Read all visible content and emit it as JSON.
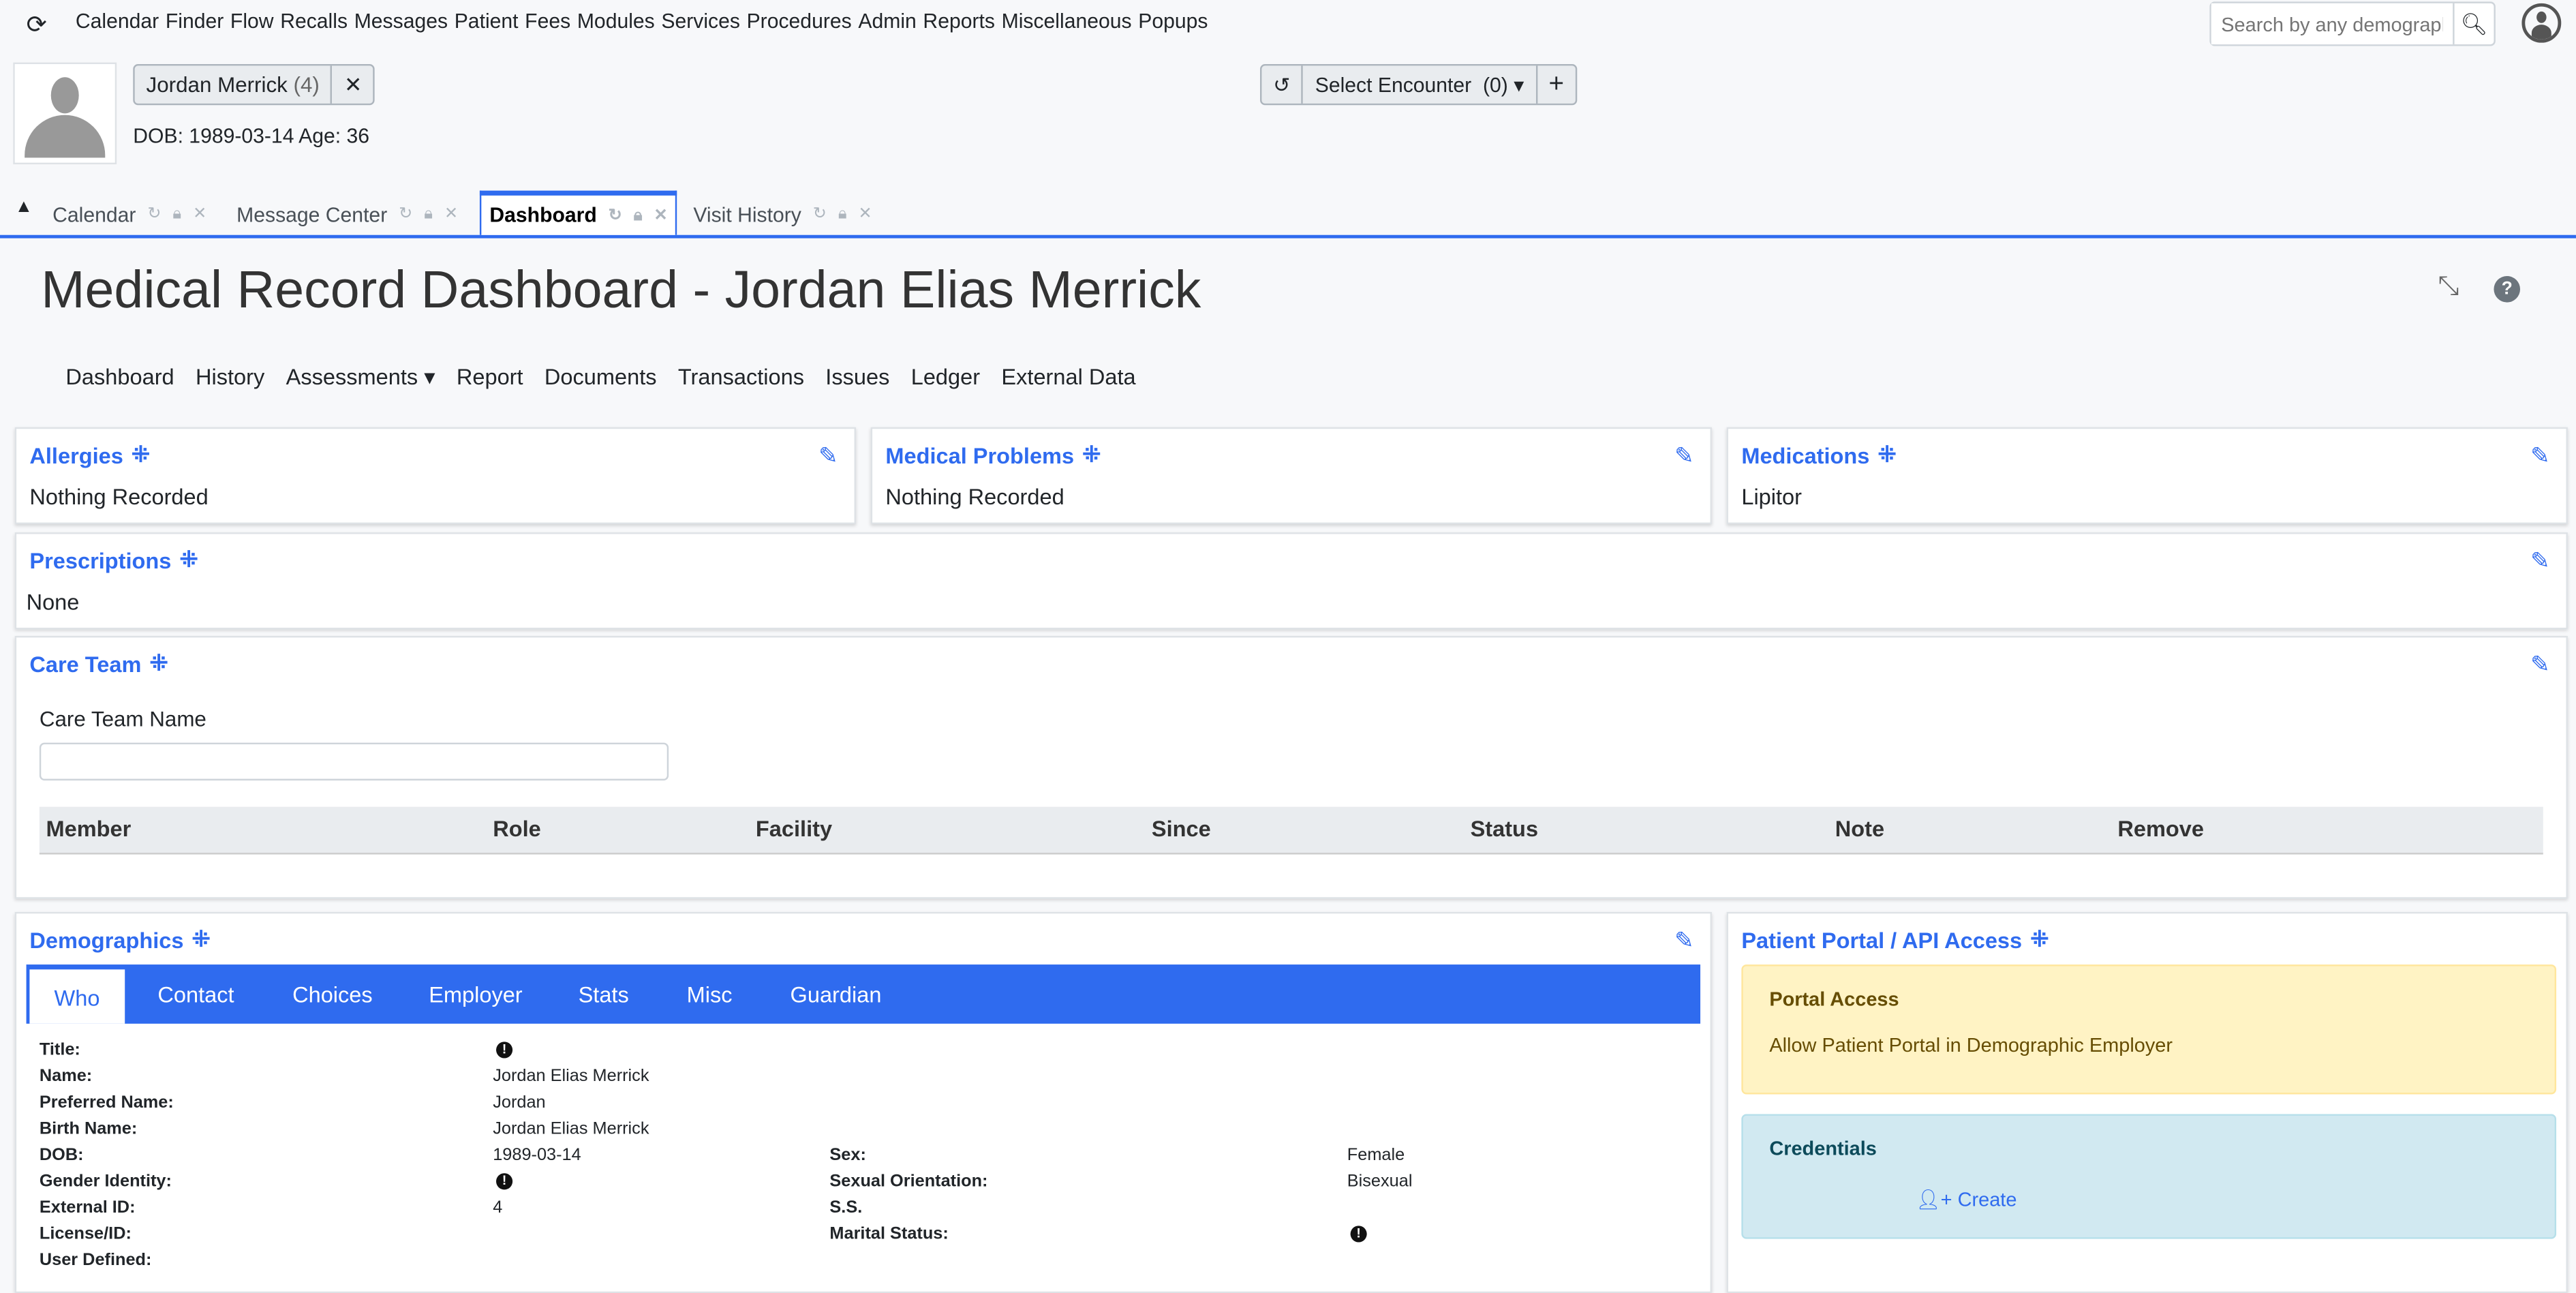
{
  "nav": {
    "menu": [
      "Calendar",
      "Finder",
      "Flow",
      "Recalls",
      "Messages",
      "Patient",
      "Fees",
      "Modules",
      "Services",
      "Procedures",
      "Admin",
      "Reports",
      "Miscellaneous",
      "Popups"
    ],
    "search_placeholder": "Search by any demographics"
  },
  "patient": {
    "chip": "Jordan Merrick",
    "chip_count": "(4)",
    "dob_line": "DOB: 1989-03-14 Age: 36"
  },
  "encounter": {
    "label": "Select Encounter",
    "count": "(0)"
  },
  "tabs": [
    {
      "label": "Calendar"
    },
    {
      "label": "Message Center"
    },
    {
      "label": "Dashboard",
      "active": true
    },
    {
      "label": "Visit History"
    }
  ],
  "page": {
    "title": "Medical Record Dashboard - Jordan Elias Merrick"
  },
  "subnav": [
    "Dashboard",
    "History",
    "Assessments",
    "Report",
    "Documents",
    "Transactions",
    "Issues",
    "Ledger",
    "External Data"
  ],
  "cards": {
    "allergies": {
      "title": "Allergies",
      "body": "Nothing Recorded"
    },
    "problems": {
      "title": "Medical Problems",
      "body": "Nothing Recorded"
    },
    "medications": {
      "title": "Medications",
      "body": "Lipitor"
    },
    "prescriptions": {
      "title": "Prescriptions",
      "body": "None"
    },
    "care_team": {
      "title": "Care Team",
      "name_label": "Care Team Name",
      "name_value": "",
      "columns": [
        "Member",
        "Role",
        "Facility",
        "Since",
        "Status",
        "Note",
        "Remove"
      ]
    }
  },
  "demographics": {
    "title": "Demographics",
    "tabs": [
      "Who",
      "Contact",
      "Choices",
      "Employer",
      "Stats",
      "Misc",
      "Guardian"
    ],
    "left": [
      {
        "label": "Title:",
        "value": "",
        "alert": true
      },
      {
        "label": "Name:",
        "value": "Jordan  Elias    Merrick"
      },
      {
        "label": "Preferred Name:",
        "value": "Jordan"
      },
      {
        "label": "Birth Name:",
        "value": "Jordan  Elias    Merrick"
      },
      {
        "label": "DOB:",
        "value": "1989-03-14"
      },
      {
        "label": "Gender Identity:",
        "value": "",
        "alert": true
      },
      {
        "label": "External ID:",
        "value": "4"
      },
      {
        "label": "License/ID:",
        "value": ""
      },
      {
        "label": "User Defined:",
        "value": ""
      }
    ],
    "right": [
      {
        "label": "Sex:",
        "value": "Female"
      },
      {
        "label": "Sexual Orientation:",
        "value": "Bisexual"
      },
      {
        "label": "S.S.",
        "value": ""
      },
      {
        "label": "Marital Status:",
        "value": "",
        "alert": true
      }
    ]
  },
  "portal": {
    "title": "Patient Portal / API Access",
    "access_title": "Portal Access",
    "access_text": "Allow Patient Portal in Demographic Employer",
    "cred_title": "Credentials",
    "create_label": "Create"
  },
  "colors": {
    "accent": "#2f6bef",
    "portal_bg": "#fff3c4",
    "cred_bg": "#d1e9f1"
  }
}
